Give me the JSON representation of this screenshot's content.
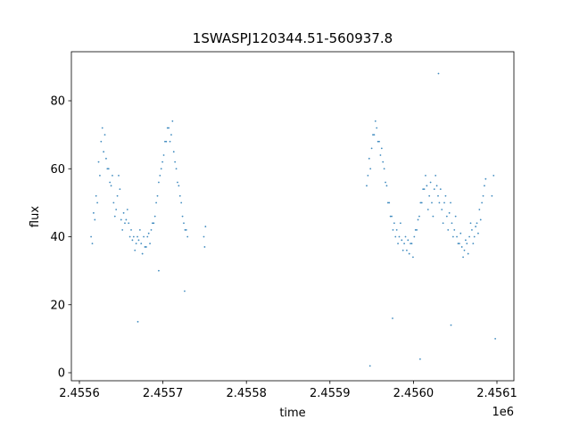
{
  "chart_data": {
    "type": "scatter",
    "title": "1SWASPJ120344.51-560937.8",
    "x_label": "time",
    "y_label": "flux",
    "x_offset_label": "1e6",
    "color": "#1f77b4",
    "xlim": [
      2.4555904,
      2.4561203
    ],
    "ylim": [
      -2.36,
      94.43
    ],
    "xticks": [
      2.4556,
      2.4557,
      2.4558,
      2.4559,
      {
        "value": 2.456,
        "label": "2.4560"
      },
      2.4561
    ],
    "yticks": [
      0,
      20,
      40,
      60,
      80
    ],
    "x": [
      2.455614,
      2.455617,
      2.45562,
      2.455623,
      2.455626,
      2.455629,
      2.455632,
      2.455635,
      2.455638,
      2.455641,
      2.455644,
      2.455647,
      2.45565,
      2.455653,
      2.455656,
      2.455659,
      2.455662,
      2.455665,
      2.455668,
      2.455671,
      2.455674,
      2.455677,
      2.45568,
      2.455683,
      2.455686,
      2.455689,
      2.455692,
      2.455695,
      2.455698,
      2.455701,
      2.455704,
      2.455707,
      2.45571,
      2.455713,
      2.455716,
      2.455719,
      2.455722,
      2.455725,
      2.455728,
      2.455749,
      2.455751,
      2.45575,
      2.4556155,
      2.4556185,
      2.4556215,
      2.4556245,
      2.4556275,
      2.4556305,
      2.4556335,
      2.4556365,
      2.4556395,
      2.4556425,
      2.4556455,
      2.4556485,
      2.4556515,
      2.4556545,
      2.4556575,
      2.4556605,
      2.4556635,
      2.4556665,
      2.4556695,
      2.4556725,
      2.4556755,
      2.4556785,
      2.4556815,
      2.4556845,
      2.4556875,
      2.4556905,
      2.4556935,
      2.4556965,
      2.4556995,
      2.4557025,
      2.4557055,
      2.4557085,
      2.4557115,
      2.4557145,
      2.4557175,
      2.4557205,
      2.4557235,
      2.4557265,
      2.4557295,
      2.45567,
      2.455726,
      2.455695,
      2.455944,
      2.455947,
      2.45595,
      2.455953,
      2.455956,
      2.455959,
      2.455962,
      2.455965,
      2.455968,
      2.455971,
      2.455974,
      2.455977,
      2.45598,
      2.455983,
      2.455986,
      2.455989,
      2.455992,
      2.455995,
      2.455998,
      2.456001,
      2.456004,
      2.456007,
      2.45601,
      2.456013,
      2.456016,
      2.456019,
      2.456022,
      2.456025,
      2.456028,
      2.456031,
      2.456034,
      2.456037,
      2.45604,
      2.456043,
      2.456046,
      2.456049,
      2.456052,
      2.456055,
      2.456058,
      2.456061,
      2.456064,
      2.456067,
      2.45607,
      2.456073,
      2.456076,
      2.456079,
      2.456082,
      2.456085,
      2.456094,
      2.456096,
      2.4559455,
      2.4559485,
      2.4559515,
      2.4559545,
      2.4559575,
      2.4559605,
      2.4559635,
      2.4559665,
      2.4559695,
      2.4559725,
      2.4559755,
      2.4559785,
      2.4559815,
      2.4559845,
      2.4559875,
      2.4559905,
      2.4559935,
      2.4559965,
      2.4559995,
      2.4560025,
      2.4560055,
      2.4560085,
      2.4560115,
      2.4560145,
      2.4560175,
      2.4560205,
      2.4560235,
      2.4560265,
      2.4560295,
      2.4560325,
      2.4560355,
      2.4560385,
      2.4560415,
      2.4560445,
      2.4560475,
      2.4560505,
      2.4560535,
      2.4560565,
      2.4560595,
      2.4560625,
      2.4560655,
      2.4560685,
      2.4560715,
      2.4560745,
      2.4560775,
      2.4560805,
      2.4560835,
      2.4560865,
      2.455975,
      2.456008,
      2.456045,
      2.456098,
      2.45603,
      2.455948
    ],
    "values": [
      40,
      47,
      52,
      62,
      68,
      65,
      63,
      60,
      55,
      50,
      48,
      58,
      45,
      47,
      45,
      44,
      42,
      40,
      38,
      39,
      38,
      40,
      37,
      41,
      42,
      44,
      50,
      56,
      60,
      64,
      68,
      72,
      70,
      65,
      60,
      55,
      50,
      44,
      42,
      40,
      43,
      37,
      38,
      45,
      50,
      58,
      72,
      70,
      60,
      56,
      58,
      46,
      52,
      54,
      42,
      44,
      48,
      40,
      39,
      36,
      40,
      42,
      35,
      37,
      40,
      38,
      44,
      46,
      52,
      58,
      62,
      68,
      72,
      68,
      74,
      62,
      56,
      52,
      46,
      42,
      40,
      15,
      24,
      30,
      55,
      63,
      66,
      70,
      72,
      68,
      66,
      60,
      55,
      50,
      46,
      44,
      42,
      40,
      39,
      38,
      36,
      35,
      38,
      40,
      42,
      46,
      50,
      54,
      55,
      52,
      50,
      54,
      55,
      50,
      48,
      50,
      46,
      47,
      44,
      42,
      40,
      38,
      37,
      36,
      38,
      40,
      42,
      40,
      44,
      48,
      50,
      55,
      52,
      58,
      58,
      60,
      70,
      74,
      68,
      64,
      62,
      56,
      50,
      46,
      42,
      40,
      38,
      44,
      36,
      40,
      39,
      38,
      34,
      42,
      45,
      50,
      54,
      58,
      48,
      56,
      46,
      58,
      52,
      54,
      44,
      52,
      42,
      50,
      40,
      46,
      38,
      41,
      34,
      39,
      35,
      44,
      38,
      43,
      41,
      45,
      52,
      57,
      16,
      4,
      14,
      10,
      88,
      2
    ]
  }
}
